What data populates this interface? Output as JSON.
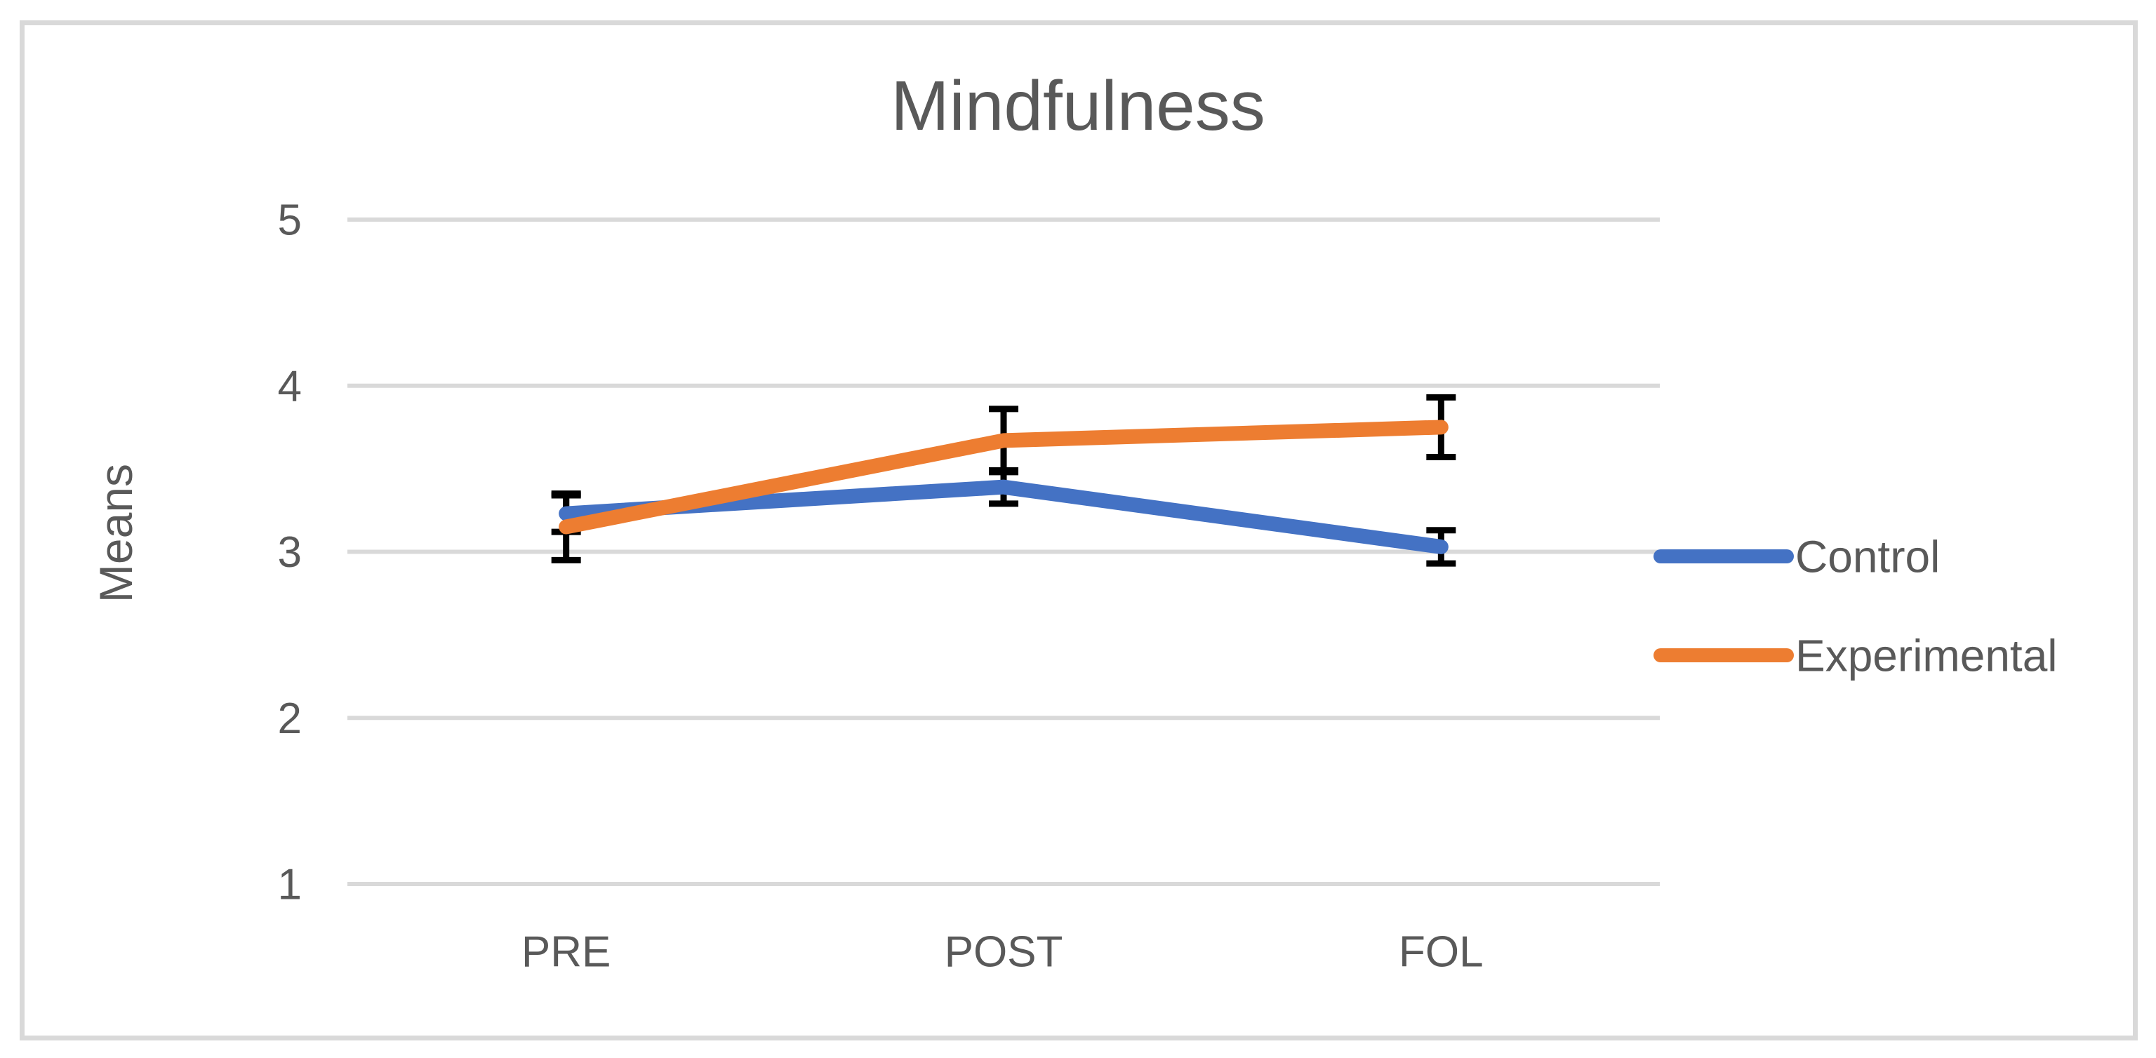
{
  "chart_data": {
    "type": "line",
    "title": "Mindfulness",
    "ylabel": "Means",
    "xlabel": "",
    "categories": [
      "PRE",
      "POST",
      "FOL"
    ],
    "series": [
      {
        "name": "Control",
        "color": "#4472C4",
        "values": [
          3.23,
          3.39,
          3.03
        ],
        "errors": [
          0.11,
          0.1,
          0.1
        ]
      },
      {
        "name": "Experimental",
        "color": "#ED7D31",
        "values": [
          3.15,
          3.67,
          3.75
        ],
        "errors": [
          0.2,
          0.19,
          0.18
        ]
      }
    ],
    "ylim": [
      1,
      5
    ],
    "yticks": [
      1,
      2,
      3,
      4,
      5
    ],
    "grid": true,
    "gridline_color": "#D9D9D9",
    "border_color": "#D9D9D9",
    "text_color": "#595959",
    "error_bar_color": "#000000",
    "background": "#FFFFFF",
    "legend_position": "right",
    "has_error_bars": true,
    "markers": false
  }
}
